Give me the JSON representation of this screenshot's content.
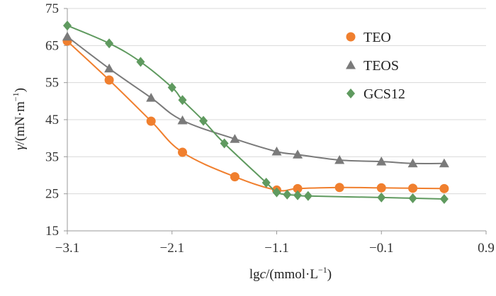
{
  "chart_data": {
    "type": "line",
    "title": "",
    "xlabel_main": "lg",
    "xlabel_italic": "c",
    "xlabel_unit": "/(mmol·L",
    "xlabel_sup": "−1",
    "xlabel_close": ")",
    "ylabel_italic": "γ",
    "ylabel_unit": "/(mN·m",
    "ylabel_sup": "−1",
    "ylabel_close": ")",
    "xlim": [
      -3.1,
      0.9
    ],
    "ylim": [
      15,
      75
    ],
    "x_ticks": [
      -3.1,
      -2.1,
      -1.1,
      -0.1,
      0.9
    ],
    "x_tick_labels": [
      "−3.1",
      "−2.1",
      "−1.1",
      "−0.1",
      "0.9"
    ],
    "y_ticks": [
      15,
      25,
      35,
      45,
      55,
      65,
      75
    ],
    "y_tick_labels": [
      "15",
      "25",
      "35",
      "45",
      "55",
      "65",
      "75"
    ],
    "grid": "horizontal",
    "legend_position": "top-right",
    "series": [
      {
        "name": "TEO",
        "color": "#f07f2e",
        "marker": "circle",
        "points": [
          [
            -3.1,
            66.2
          ],
          [
            -2.7,
            55.7
          ],
          [
            -2.3,
            44.6
          ],
          [
            -2.0,
            36.2
          ],
          [
            -1.5,
            29.6
          ],
          [
            -1.1,
            26.0
          ],
          [
            -0.9,
            26.4
          ],
          [
            -0.5,
            26.7
          ],
          [
            -0.1,
            26.6
          ],
          [
            0.2,
            26.5
          ],
          [
            0.5,
            26.4
          ]
        ]
      },
      {
        "name": "TEOS",
        "color": "#7a7a7a",
        "marker": "triangle",
        "points": [
          [
            -3.1,
            67.4
          ],
          [
            -2.7,
            58.8
          ],
          [
            -2.3,
            50.9
          ],
          [
            -2.0,
            44.8
          ],
          [
            -1.5,
            39.8
          ],
          [
            -1.1,
            36.4
          ],
          [
            -0.9,
            35.6
          ],
          [
            -0.5,
            34.1
          ],
          [
            -0.1,
            33.7
          ],
          [
            0.2,
            33.2
          ],
          [
            0.5,
            33.2
          ]
        ]
      },
      {
        "name": "GCS12",
        "color": "#5f9a5f",
        "marker": "diamond",
        "points": [
          [
            -3.1,
            70.4
          ],
          [
            -2.7,
            65.6
          ],
          [
            -2.4,
            60.6
          ],
          [
            -2.1,
            53.7
          ],
          [
            -2.0,
            50.3
          ],
          [
            -1.8,
            44.7
          ],
          [
            -1.6,
            38.6
          ],
          [
            -1.2,
            28.0
          ],
          [
            -1.1,
            25.4
          ],
          [
            -1.0,
            24.8
          ],
          [
            -0.9,
            24.6
          ],
          [
            -0.8,
            24.4
          ],
          [
            -0.1,
            24.0
          ],
          [
            0.2,
            23.8
          ],
          [
            0.5,
            23.6
          ]
        ]
      }
    ]
  }
}
